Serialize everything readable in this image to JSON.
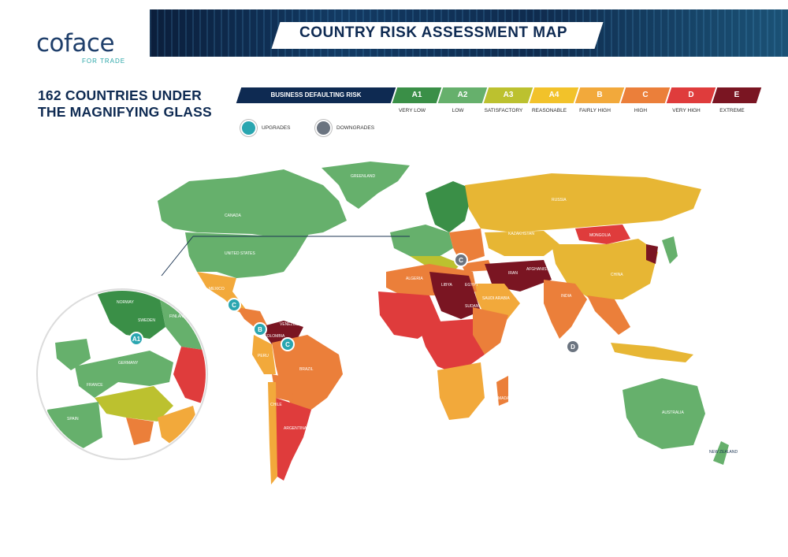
{
  "brand": {
    "name": "coface",
    "tagline": "FOR TRADE"
  },
  "banner": {
    "title": "COUNTRY RISK ASSESSMENT MAP"
  },
  "headline": {
    "line1": "162 COUNTRIES UNDER",
    "line2": "THE MAGNIFYING GLASS"
  },
  "scale": {
    "title": "BUSINESS DEFAULTING RISK",
    "title_color": "#0e2a52",
    "grades": [
      {
        "code": "A1",
        "label": "VERY LOW",
        "color": "#3a8f47"
      },
      {
        "code": "A2",
        "label": "LOW",
        "color": "#66b06c"
      },
      {
        "code": "A3",
        "label": "SATISFACTORY",
        "color": "#bcc12f"
      },
      {
        "code": "A4",
        "label": "REASONABLE",
        "color": "#f2c22a"
      },
      {
        "code": "B",
        "label": "FAIRLY HIGH",
        "color": "#f2a93b"
      },
      {
        "code": "C",
        "label": "HIGH",
        "color": "#eb7f3a"
      },
      {
        "code": "D",
        "label": "VERY HIGH",
        "color": "#df3c3c"
      },
      {
        "code": "E",
        "label": "EXTREME",
        "color": "#7a1522"
      }
    ]
  },
  "marker_legend": {
    "upgrades": {
      "label": "UPGRADES",
      "color": "#2aa6b0"
    },
    "downgrades": {
      "label": "DOWNGRADES",
      "color": "#6b7480"
    }
  },
  "map": {
    "ocean_color": "#ffffff",
    "country_labels": [
      "CANADA",
      "UNITED STATES",
      "MEXICO",
      "BRAZIL",
      "RUSSIA",
      "KAZAKHSTAN",
      "MONGOLIA",
      "CHINA",
      "INDIA",
      "AUSTRALIA",
      "ALGERIA",
      "LIBYA",
      "EGYPT",
      "SUDAN",
      "IRAN",
      "AFGHANISTAN",
      "SAUDI ARABIA",
      "ARGENTINA",
      "NEW ZEALAND",
      "GREENLAND",
      "SWEDEN",
      "FINLAND",
      "GERMANY",
      "NORWAY",
      "SPAIN",
      "FRANCE",
      "COLOMBIA",
      "VENEZUELA",
      "PERU",
      "CHILE",
      "MADAGASCAR"
    ],
    "markers": [
      {
        "grade": "C",
        "kind": "upgrade"
      },
      {
        "grade": "B",
        "kind": "upgrade"
      },
      {
        "grade": "C",
        "kind": "upgrade"
      },
      {
        "grade": "A1",
        "kind": "upgrade"
      },
      {
        "grade": "C",
        "kind": "downgrade"
      },
      {
        "grade": "D",
        "kind": "downgrade"
      }
    ]
  }
}
